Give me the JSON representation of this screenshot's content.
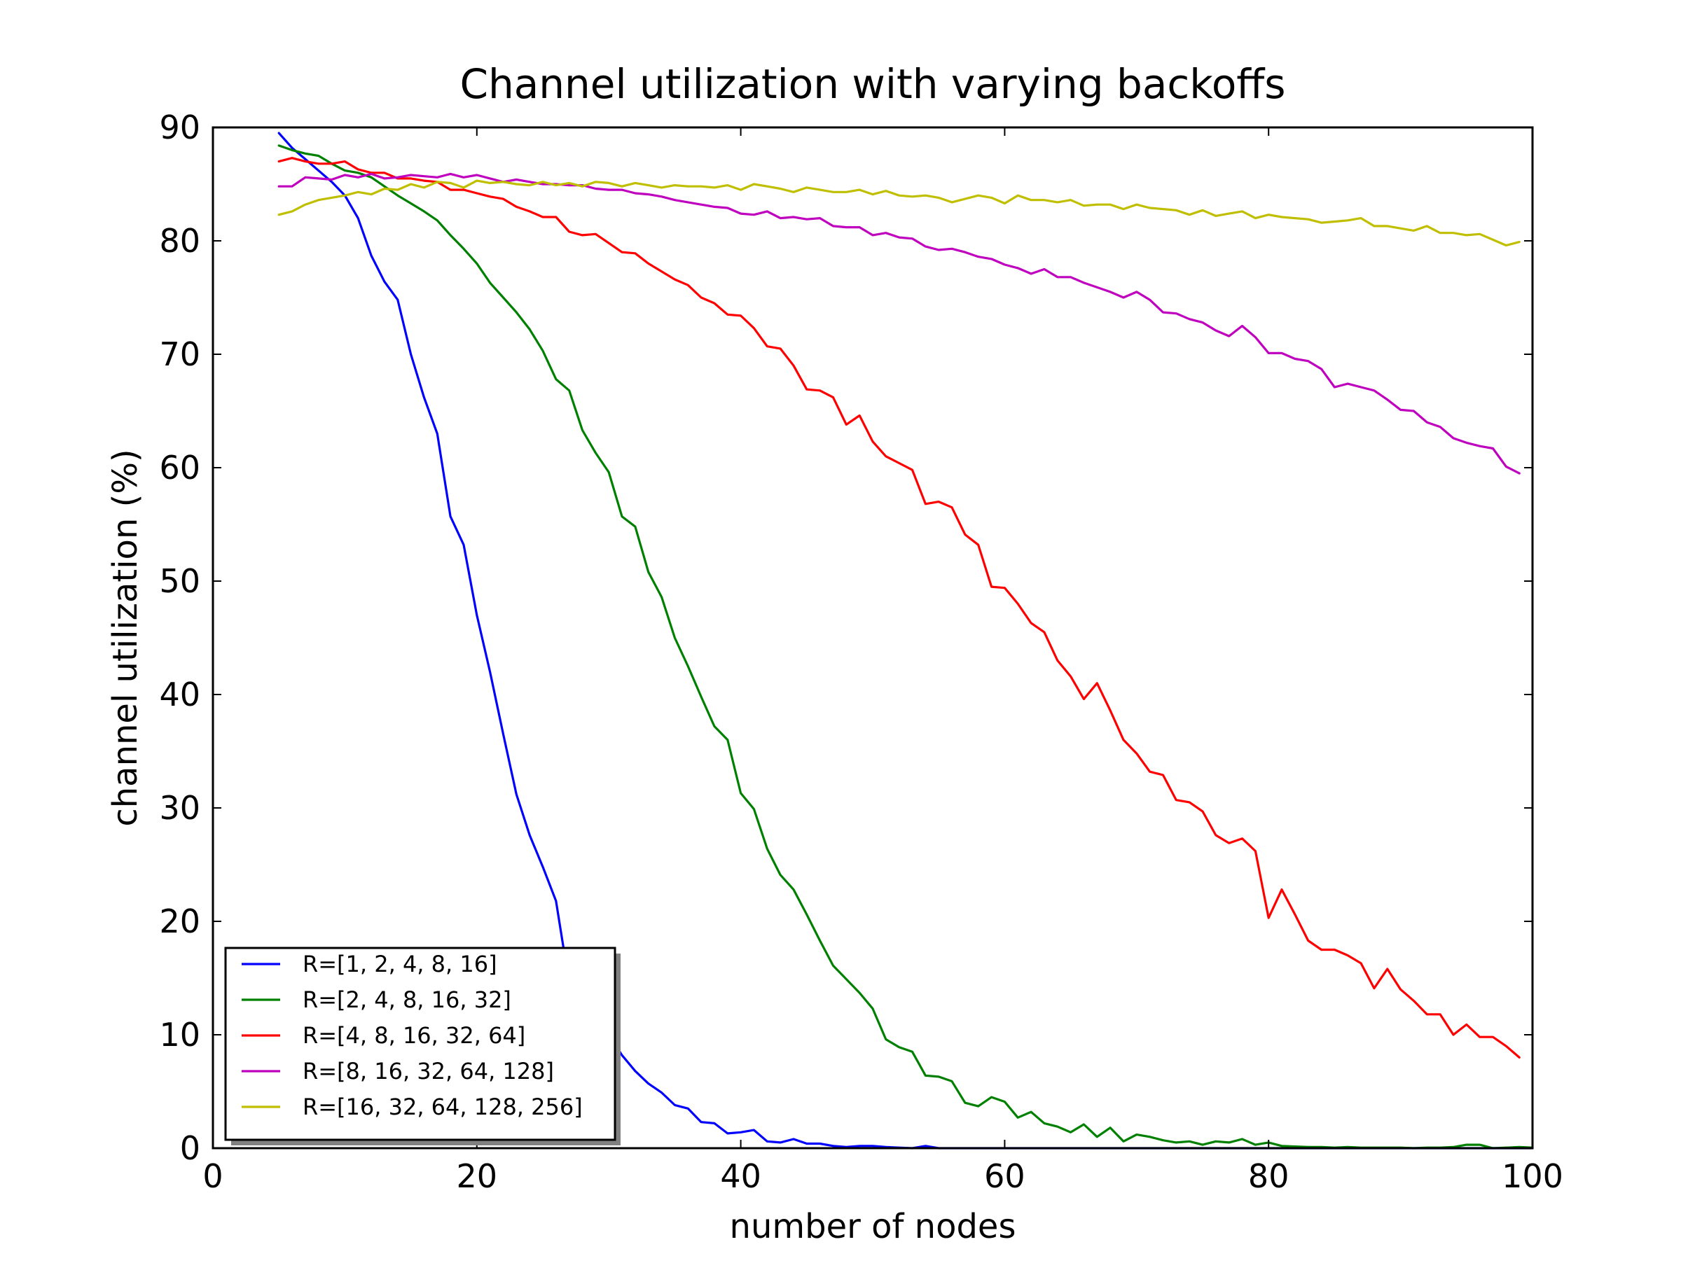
{
  "chart_data": {
    "type": "line",
    "title": "Channel utilization with varying backoffs",
    "xlabel": "number of nodes",
    "ylabel": "channel utilization (%)",
    "xlim": [
      0,
      100
    ],
    "ylim": [
      0,
      90
    ],
    "xticks": [
      0,
      20,
      40,
      60,
      80,
      100
    ],
    "yticks": [
      0,
      10,
      20,
      30,
      40,
      50,
      60,
      70,
      80,
      90
    ],
    "x_start": 5,
    "x_step": 1,
    "legend_position": "lower-left",
    "grid": false,
    "series": [
      {
        "name": "R=[1, 2, 4, 8, 16]",
        "color": "#0000ff",
        "values": [
          89.5,
          88.2,
          87.2,
          86.2,
          85.2,
          84.0,
          82.0,
          78.7,
          76.4,
          74.8,
          70.0,
          66.2,
          63.0,
          55.7,
          53.2,
          47.0,
          42.0,
          36.5,
          31.2,
          27.6,
          24.8,
          21.8,
          14.5,
          12.8,
          11.5,
          10.0,
          8.2,
          6.8,
          5.7,
          4.9,
          3.8,
          3.5,
          2.3,
          2.2,
          1.3,
          1.4,
          1.6,
          0.6,
          0.5,
          0.8,
          0.4,
          0.4,
          0.2,
          0.1,
          0.2,
          0.2,
          0.1,
          0.05,
          0.0,
          0.2,
          0.0,
          0.0,
          0.0,
          0.0,
          0.0,
          0.0,
          0.0,
          0.0,
          0.0,
          0.0,
          0.0,
          0.0,
          0.0,
          0.0,
          0.0,
          0.0,
          0.0,
          0.0,
          0.0,
          0.0,
          0.0,
          0.0,
          0.0,
          0.0,
          0.0,
          0.0,
          0.0,
          0.0,
          0.0,
          0.0,
          0.0,
          0.0,
          0.0,
          0.0,
          0.0,
          0.0,
          0.0,
          0.0,
          0.0,
          0.0,
          0.0,
          0.0,
          0.0,
          0.0,
          0.0,
          0.0
        ]
      },
      {
        "name": "R=[2, 4, 8, 16, 32]",
        "color": "#008000",
        "values": [
          88.4,
          88.0,
          87.7,
          87.5,
          86.8,
          86.2,
          86.0,
          85.6,
          84.8,
          84.0,
          83.3,
          82.6,
          81.8,
          80.5,
          79.3,
          78.0,
          76.3,
          75.0,
          73.7,
          72.2,
          70.3,
          67.8,
          66.8,
          63.3,
          61.3,
          59.6,
          55.7,
          54.8,
          50.8,
          48.6,
          45.0,
          42.5,
          39.8,
          37.2,
          36.0,
          31.3,
          29.9,
          26.4,
          24.1,
          22.8,
          20.6,
          18.3,
          16.1,
          14.9,
          13.7,
          12.3,
          9.6,
          8.9,
          8.5,
          6.4,
          6.3,
          5.9,
          4.0,
          3.7,
          4.5,
          4.1,
          2.7,
          3.2,
          2.2,
          1.9,
          1.4,
          2.1,
          1.0,
          1.8,
          0.6,
          1.2,
          1.0,
          0.7,
          0.5,
          0.6,
          0.3,
          0.6,
          0.5,
          0.8,
          0.3,
          0.5,
          0.2,
          0.15,
          0.1,
          0.1,
          0.05,
          0.1,
          0.05,
          0.05,
          0.05,
          0.05,
          0.0,
          0.05,
          0.05,
          0.1,
          0.3,
          0.3,
          0.0,
          0.05,
          0.1,
          0.05
        ]
      },
      {
        "name": "R=[4, 8, 16, 32, 64]",
        "color": "#ff0000",
        "values": [
          87.0,
          87.3,
          87.0,
          86.8,
          86.8,
          87.0,
          86.3,
          86.0,
          86.0,
          85.5,
          85.5,
          85.3,
          85.2,
          84.5,
          84.5,
          84.2,
          83.9,
          83.7,
          83.0,
          82.6,
          82.1,
          82.1,
          80.8,
          80.5,
          80.6,
          79.8,
          79.0,
          78.9,
          78.0,
          77.3,
          76.6,
          76.1,
          75.0,
          74.5,
          73.5,
          73.4,
          72.3,
          70.7,
          70.5,
          69.0,
          66.9,
          66.8,
          66.2,
          63.8,
          64.6,
          62.3,
          61.0,
          60.4,
          59.8,
          56.8,
          57.0,
          56.5,
          54.1,
          53.2,
          49.5,
          49.4,
          48.0,
          46.3,
          45.5,
          43.0,
          41.6,
          39.6,
          41.0,
          38.6,
          36.0,
          34.8,
          33.2,
          32.9,
          30.7,
          30.5,
          29.7,
          27.6,
          26.9,
          27.3,
          26.2,
          20.3,
          22.8,
          20.6,
          18.3,
          17.5,
          17.5,
          17.0,
          16.3,
          14.1,
          15.8,
          14.0,
          13.0,
          11.8,
          11.8,
          10.0,
          10.9,
          9.8,
          9.8,
          9.0,
          8.0
        ]
      },
      {
        "name": "R=[8, 16, 32, 64, 128]",
        "color": "#bf00bf",
        "values": [
          84.8,
          84.8,
          85.6,
          85.5,
          85.4,
          85.8,
          85.6,
          85.9,
          85.5,
          85.6,
          85.8,
          85.7,
          85.6,
          85.9,
          85.6,
          85.8,
          85.5,
          85.2,
          85.4,
          85.2,
          85.0,
          85.0,
          84.9,
          84.9,
          84.6,
          84.5,
          84.5,
          84.2,
          84.1,
          83.9,
          83.6,
          83.4,
          83.2,
          83.0,
          82.9,
          82.4,
          82.3,
          82.6,
          82.0,
          82.1,
          81.9,
          82.0,
          81.3,
          81.2,
          81.2,
          80.5,
          80.7,
          80.3,
          80.2,
          79.5,
          79.2,
          79.3,
          79.0,
          78.6,
          78.4,
          77.9,
          77.6,
          77.1,
          77.5,
          76.8,
          76.8,
          76.3,
          75.9,
          75.5,
          75.0,
          75.5,
          74.8,
          73.7,
          73.6,
          73.1,
          72.8,
          72.1,
          71.6,
          72.5,
          71.5,
          70.1,
          70.1,
          69.6,
          69.4,
          68.7,
          67.1,
          67.4,
          67.1,
          66.8,
          66.0,
          65.1,
          65.0,
          64.0,
          63.6,
          62.6,
          62.2,
          61.9,
          61.7,
          60.1,
          59.5
        ]
      },
      {
        "name": "R=[16, 32, 64, 128, 256]",
        "color": "#bfbf00",
        "values": [
          82.3,
          82.6,
          83.2,
          83.6,
          83.8,
          84.0,
          84.3,
          84.1,
          84.6,
          84.5,
          85.0,
          84.7,
          85.2,
          85.1,
          84.7,
          85.3,
          85.1,
          85.2,
          85.0,
          84.9,
          85.2,
          84.9,
          85.1,
          84.8,
          85.2,
          85.1,
          84.8,
          85.1,
          84.9,
          84.7,
          84.9,
          84.8,
          84.8,
          84.7,
          84.9,
          84.5,
          85.0,
          84.8,
          84.6,
          84.3,
          84.7,
          84.5,
          84.3,
          84.3,
          84.5,
          84.1,
          84.4,
          84.0,
          83.9,
          84.0,
          83.8,
          83.4,
          83.7,
          84.0,
          83.8,
          83.3,
          84.0,
          83.6,
          83.6,
          83.4,
          83.6,
          83.1,
          83.2,
          83.2,
          82.8,
          83.2,
          82.9,
          82.8,
          82.7,
          82.3,
          82.7,
          82.2,
          82.4,
          82.6,
          82.0,
          82.3,
          82.1,
          82.0,
          81.9,
          81.6,
          81.7,
          81.8,
          82.0,
          81.3,
          81.3,
          81.1,
          80.9,
          81.3,
          80.7,
          80.7,
          80.5,
          80.6,
          80.1,
          79.6,
          79.9
        ]
      }
    ]
  }
}
